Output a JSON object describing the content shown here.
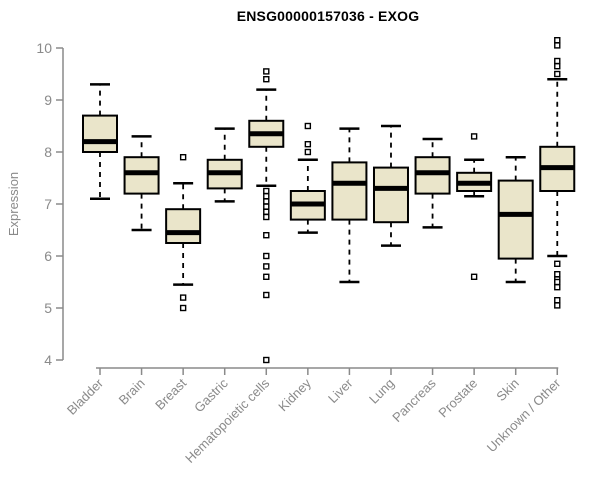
{
  "chart_data": {
    "type": "boxplot",
    "title": "ENSG00000157036 - EXOG",
    "ylabel": "Expression",
    "ylim": [
      4,
      10
    ],
    "yticks": [
      4,
      5,
      6,
      7,
      8,
      9,
      10
    ],
    "grid": false,
    "colors": {
      "box_fill": "#EAE5CA",
      "box_stroke": "#000000",
      "axis": "#8A8A8A",
      "tick_text": "#8A8A8A",
      "title_text": "#000000"
    },
    "categories": [
      "Bladder",
      "Brain",
      "Breast",
      "Gastric",
      "Hematopoietic cells",
      "Kidney",
      "Liver",
      "Lung",
      "Pancreas",
      "Prostate",
      "Skin",
      "Unknown / Other"
    ],
    "boxes": [
      {
        "category": "Bladder",
        "low": 7.1,
        "q1": 8.0,
        "median": 8.2,
        "q3": 8.7,
        "high": 9.3,
        "outliers": []
      },
      {
        "category": "Brain",
        "low": 6.5,
        "q1": 7.2,
        "median": 7.6,
        "q3": 7.9,
        "high": 8.3,
        "outliers": []
      },
      {
        "category": "Breast",
        "low": 5.45,
        "q1": 6.25,
        "median": 6.45,
        "q3": 6.9,
        "high": 7.4,
        "outliers": [
          7.9,
          5.2,
          5.0
        ]
      },
      {
        "category": "Gastric",
        "low": 7.05,
        "q1": 7.3,
        "median": 7.6,
        "q3": 7.85,
        "high": 8.45,
        "outliers": []
      },
      {
        "category": "Hematopoietic cells",
        "low": 7.35,
        "q1": 8.1,
        "median": 8.35,
        "q3": 8.6,
        "high": 9.2,
        "outliers": [
          9.55,
          9.4,
          7.25,
          7.15,
          7.05,
          6.95,
          6.85,
          6.75,
          6.4,
          6.0,
          5.8,
          5.6,
          5.25,
          4.0
        ]
      },
      {
        "category": "Kidney",
        "low": 6.45,
        "q1": 6.7,
        "median": 7.0,
        "q3": 7.25,
        "high": 7.85,
        "outliers": [
          8.5,
          8.15,
          8.0
        ]
      },
      {
        "category": "Liver",
        "low": 5.5,
        "q1": 6.7,
        "median": 7.4,
        "q3": 7.8,
        "high": 8.45,
        "outliers": []
      },
      {
        "category": "Lung",
        "low": 6.2,
        "q1": 6.65,
        "median": 7.3,
        "q3": 7.7,
        "high": 8.5,
        "outliers": []
      },
      {
        "category": "Pancreas",
        "low": 6.55,
        "q1": 7.2,
        "median": 7.6,
        "q3": 7.9,
        "high": 8.25,
        "outliers": []
      },
      {
        "category": "Prostate",
        "low": 7.15,
        "q1": 7.25,
        "median": 7.4,
        "q3": 7.6,
        "high": 7.85,
        "outliers": [
          8.3,
          5.6
        ]
      },
      {
        "category": "Skin",
        "low": 5.5,
        "q1": 5.95,
        "median": 6.8,
        "q3": 7.45,
        "high": 7.9,
        "outliers": []
      },
      {
        "category": "Unknown / Other",
        "low": 6.0,
        "q1": 7.25,
        "median": 7.7,
        "q3": 8.1,
        "high": 9.4,
        "outliers": [
          10.15,
          10.05,
          9.75,
          9.65,
          9.5,
          5.85,
          5.65,
          5.55,
          5.5,
          5.4,
          5.15,
          5.05
        ]
      }
    ]
  }
}
